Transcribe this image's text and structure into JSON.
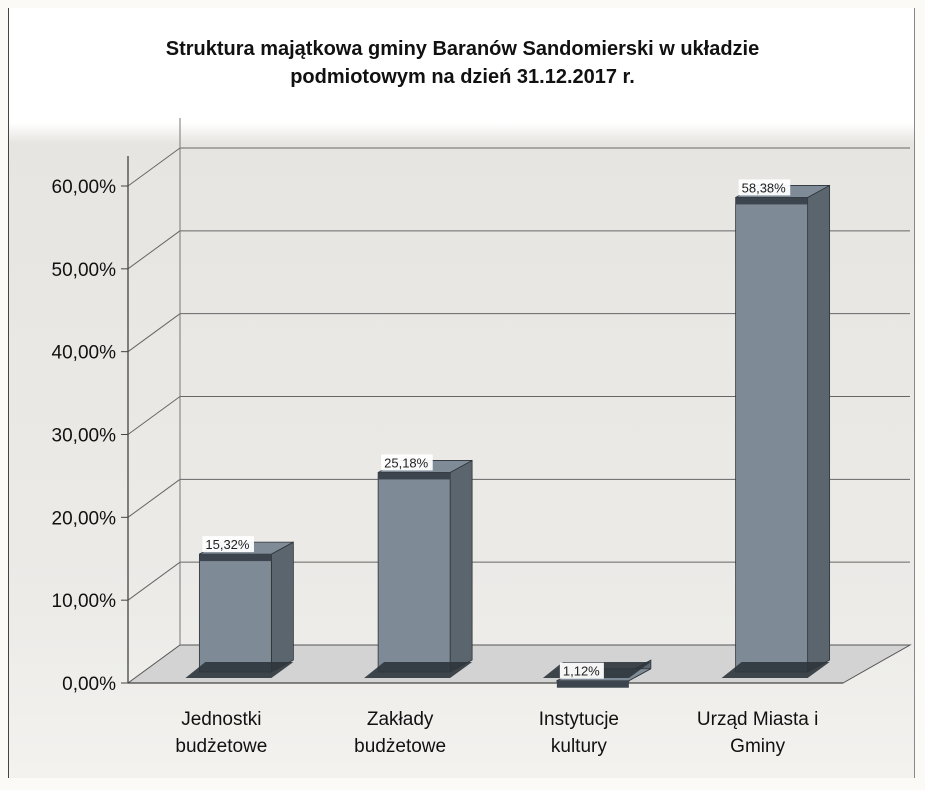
{
  "chart_data": {
    "type": "bar",
    "title_line1": "Struktura majątkowa gminy Baranów Sandomierski  w układzie",
    "title_line2": "podmiotowym na dzień 31.12.2017 r.",
    "categories": [
      "Jednostki budżetowe",
      "Zakłady budżetowe",
      "Instytucje kultury",
      "Urząd Miasta i Gminy"
    ],
    "category_lines": [
      [
        "Jednostki",
        "budżetowe"
      ],
      [
        "Zakłady",
        "budżetowe"
      ],
      [
        "Instytucje",
        "kultury"
      ],
      [
        "Urząd Miasta i",
        "Gminy"
      ]
    ],
    "values": [
      15.32,
      25.18,
      1.12,
      58.38
    ],
    "data_labels": [
      "15,32%",
      "25,18%",
      "1,12%",
      "58,38%"
    ],
    "yticks": [
      "0,00%",
      "10,00%",
      "20,00%",
      "30,00%",
      "40,00%",
      "50,00%",
      "60,00%"
    ],
    "ylim": [
      0,
      60
    ],
    "grid": true,
    "legend": "none",
    "style": "3d-column",
    "colors": {
      "front": "#7e8a95",
      "top": "#7f8b96",
      "side": "#5b656e",
      "band": "#3c454d",
      "grid": "#666666",
      "floor": "#d3d3d3"
    }
  }
}
